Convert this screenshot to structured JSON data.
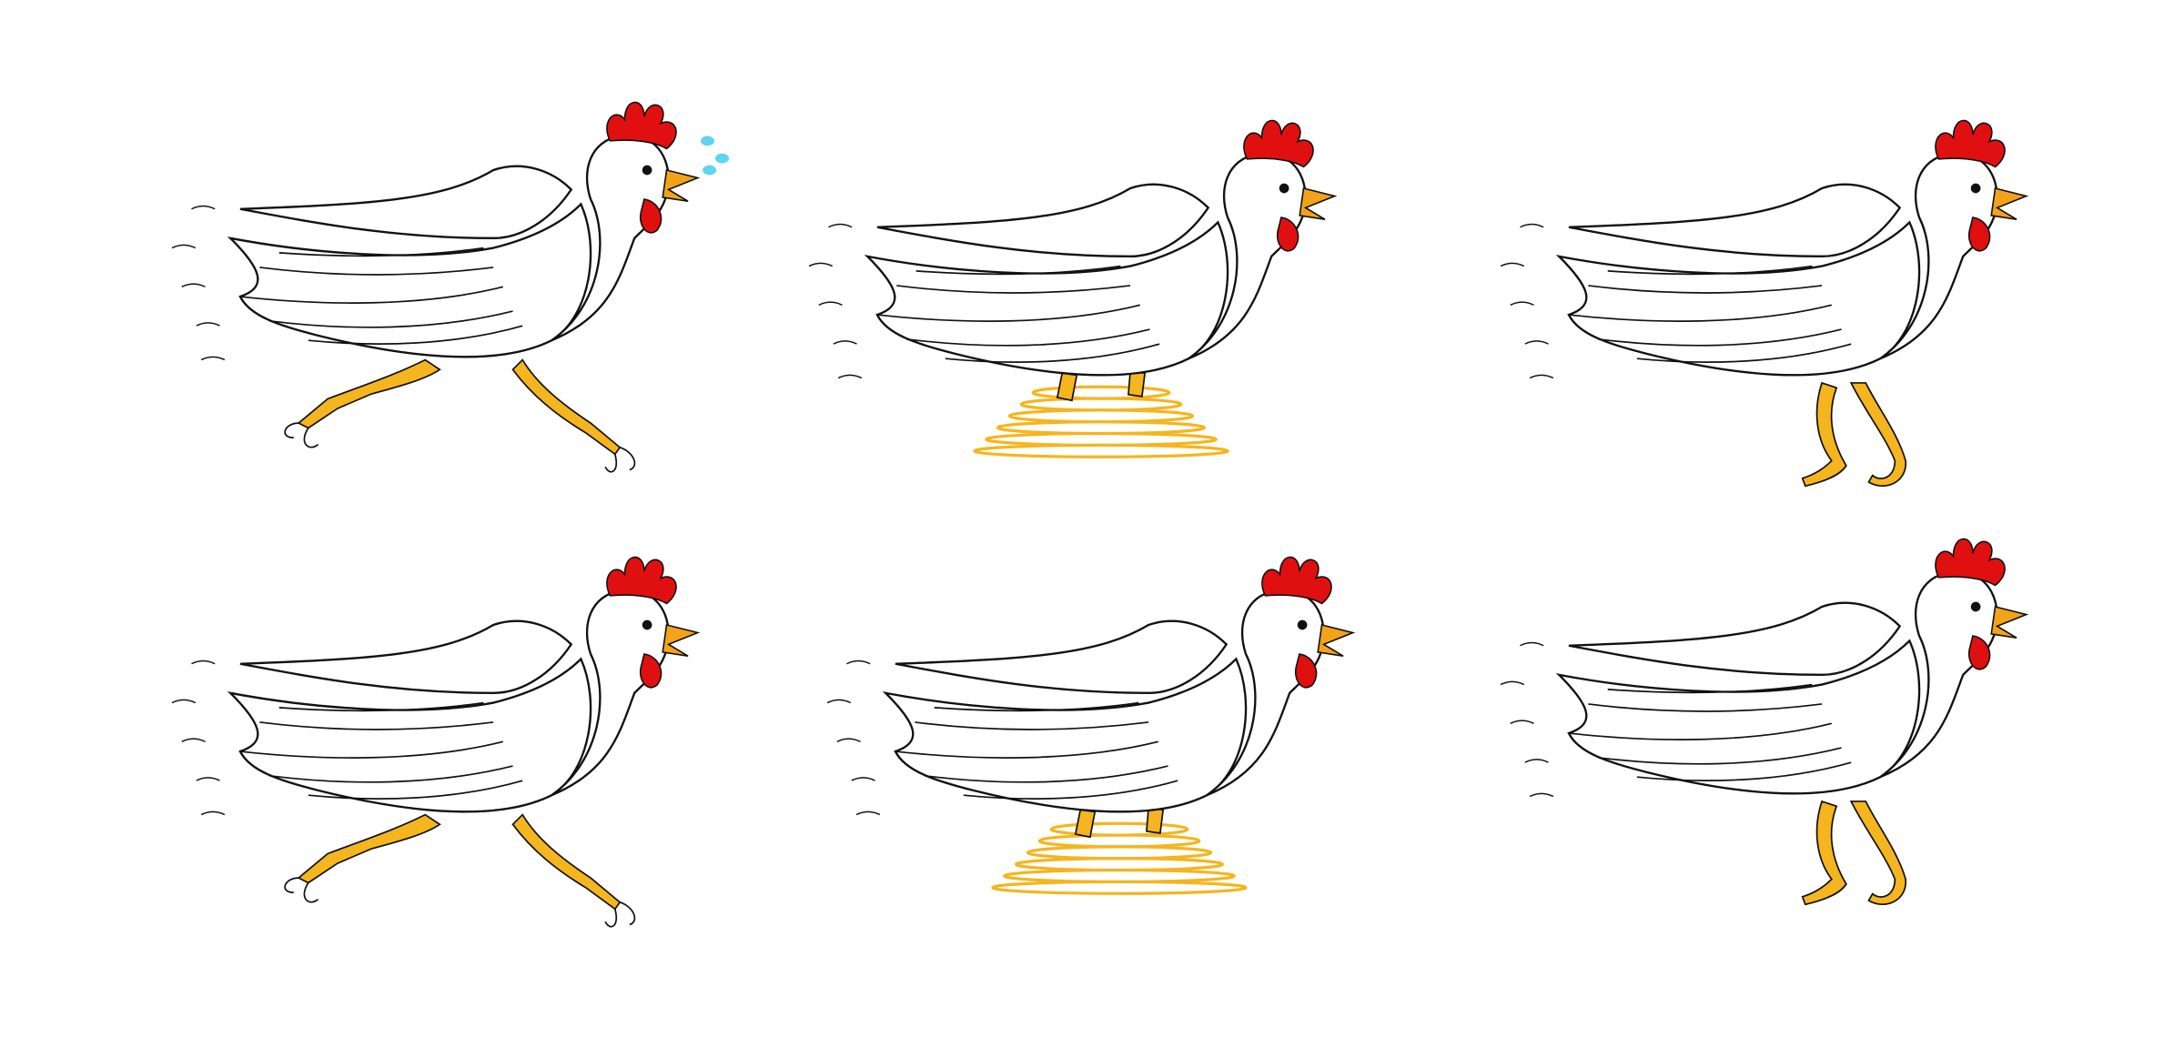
{
  "scene": {
    "background": "#ffffff",
    "subject": "chicken-run-cycle",
    "frames": [
      {
        "pose": "stride",
        "sweat_drops": true,
        "motion_rings": false
      },
      {
        "pose": "spin",
        "sweat_drops": false,
        "motion_rings": true
      },
      {
        "pose": "tucked",
        "sweat_drops": false,
        "motion_rings": false
      },
      {
        "pose": "stride",
        "sweat_drops": false,
        "motion_rings": false
      },
      {
        "pose": "spin",
        "sweat_drops": false,
        "motion_rings": true
      },
      {
        "pose": "tucked",
        "sweat_drops": false,
        "motion_rings": false
      }
    ]
  },
  "colors": {
    "outline": "#111111",
    "body": "#ffffff",
    "comb": "#e01010",
    "beak": "#f2a31a",
    "legs": "#f5b51e",
    "leg_pattern": "#d88a0a",
    "motion": "#f5b51e",
    "sweat": "#5fd4ef"
  }
}
